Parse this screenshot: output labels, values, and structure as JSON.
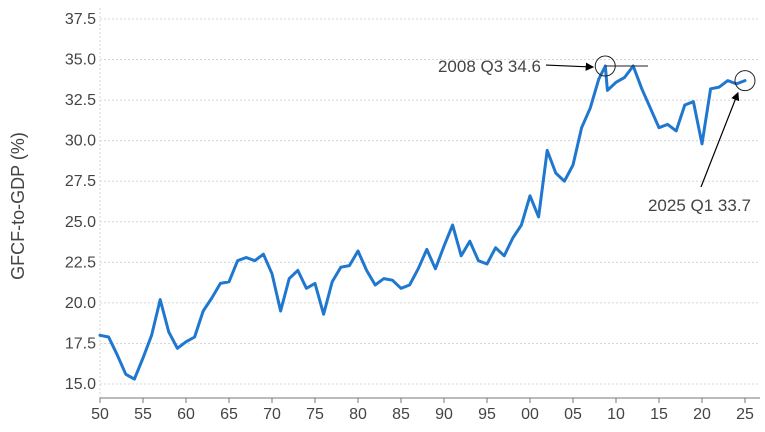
{
  "chart_data": {
    "type": "line",
    "title": "",
    "xlabel": "",
    "ylabel": "GFCF-to-GDP (%)",
    "ylim": [
      14.5,
      38.0
    ],
    "xlim": [
      1950,
      2026.5
    ],
    "grid": true,
    "yticks": [
      15.0,
      17.5,
      20.0,
      22.5,
      25.0,
      27.5,
      30.0,
      32.5,
      35.0,
      37.5
    ],
    "ytick_labels": [
      "15.0",
      "17.5",
      "20.0",
      "22.5",
      "25.0",
      "27.5",
      "30.0",
      "32.5",
      "35.0",
      "37.5"
    ],
    "xticks": [
      1950,
      1955,
      1960,
      1965,
      1970,
      1975,
      1980,
      1985,
      1990,
      1995,
      2000,
      2005,
      2010,
      2015,
      2020,
      2025
    ],
    "xtick_labels": [
      "50",
      "55",
      "60",
      "65",
      "70",
      "75",
      "80",
      "85",
      "90",
      "95",
      "00",
      "05",
      "10",
      "15",
      "20",
      "25"
    ],
    "series": [
      {
        "color": "#1f77d0",
        "x": [
          1950,
          1951,
          1952,
          1953,
          1954,
          1955,
          1956,
          1957,
          1958,
          1959,
          1960,
          1961,
          1962,
          1963,
          1964,
          1965,
          1966,
          1967,
          1968,
          1969,
          1970,
          1971,
          1972,
          1973,
          1974,
          1975,
          1976,
          1977,
          1978,
          1979,
          1980,
          1981,
          1982,
          1983,
          1984,
          1985,
          1986,
          1987,
          1988,
          1989,
          1990,
          1991,
          1992,
          1993,
          1994,
          1995,
          1996,
          1997,
          1998,
          1999,
          2000,
          2001,
          2002,
          2003,
          2004,
          2005,
          2006,
          2007,
          2008,
          2008.75,
          2009,
          2010,
          2011,
          2012,
          2013,
          2014,
          2015,
          2016,
          2017,
          2018,
          2019,
          2020,
          2021,
          2022,
          2023,
          2024,
          2025.0
        ],
        "values": [
          18.0,
          17.9,
          16.8,
          15.6,
          15.3,
          16.6,
          18.0,
          20.2,
          18.2,
          17.2,
          17.6,
          17.9,
          19.5,
          20.3,
          21.2,
          21.3,
          22.6,
          22.8,
          22.6,
          23.0,
          21.8,
          19.5,
          21.5,
          22.0,
          20.9,
          21.2,
          19.3,
          21.3,
          22.2,
          22.3,
          23.2,
          22.0,
          21.1,
          21.5,
          21.4,
          20.9,
          21.1,
          22.1,
          23.3,
          22.1,
          23.5,
          24.8,
          22.9,
          23.8,
          22.6,
          22.4,
          23.4,
          22.9,
          24.0,
          24.8,
          26.6,
          25.3,
          29.4,
          28.0,
          27.5,
          28.5,
          30.8,
          32.0,
          33.8,
          34.6,
          33.1,
          33.6,
          33.9,
          34.6,
          33.2,
          32.0,
          30.8,
          31.0,
          30.6,
          32.2,
          32.4,
          29.8,
          33.2,
          33.3,
          33.7,
          33.5,
          33.7
        ]
      }
    ],
    "annotations": [
      {
        "label": "2008 Q3 34.6",
        "x": 2008.75,
        "y": 34.6
      },
      {
        "label": "2025 Q1 33.7",
        "x": 2025.0,
        "y": 33.7
      }
    ]
  }
}
